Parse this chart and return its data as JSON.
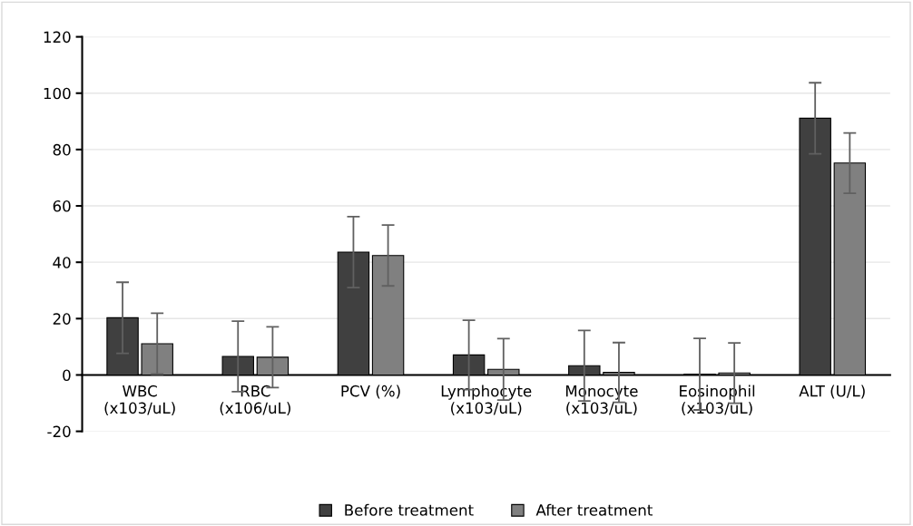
{
  "chart_data": {
    "type": "bar",
    "categories": [
      "WBC\n(x103/uL)",
      "RBC\n(x106/uL)",
      "PCV (%)",
      "Lymphocyte\n(x103/uL)",
      "Monocyte\n(x103/uL)",
      "Eosinophil\n(x103/uL)",
      "ALT (U/L)"
    ],
    "series": [
      {
        "name": "Before treatment",
        "color": "#404040",
        "values": [
          20.3,
          6.6,
          43.6,
          7.1,
          3.3,
          0.3,
          91.1
        ],
        "errors": [
          12.6,
          12.5,
          12.6,
          12.3,
          12.5,
          12.7,
          12.6
        ]
      },
      {
        "name": "After treatment",
        "color": "#808080",
        "values": [
          11.1,
          6.3,
          42.4,
          2.0,
          0.9,
          0.7,
          75.2
        ],
        "errors": [
          10.8,
          10.8,
          10.8,
          10.9,
          10.6,
          10.7,
          10.7
        ]
      }
    ],
    "ylim": [
      -20,
      120
    ],
    "yticks": [
      -20,
      0,
      20,
      40,
      60,
      80,
      100,
      120
    ],
    "grid": "y",
    "legend": "bottom"
  }
}
